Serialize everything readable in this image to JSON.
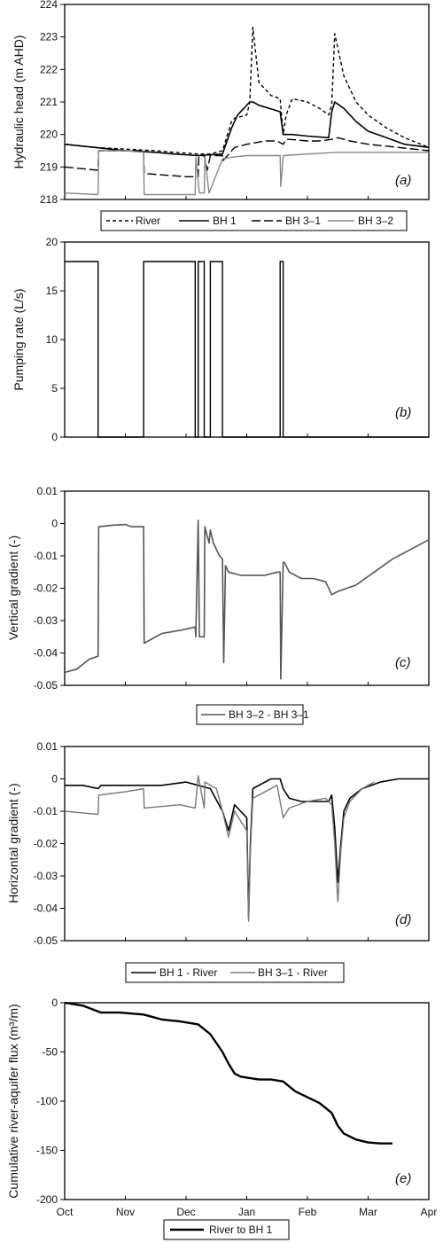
{
  "chart_data": [
    {
      "panel": "a",
      "type": "line",
      "ylabel": "Hydraulic head (m AHD)",
      "ylim": [
        218,
        224
      ],
      "yticks": [
        218,
        219,
        220,
        221,
        222,
        223,
        224
      ],
      "xlim": [
        0,
        6
      ],
      "x_unit": "months since Oct",
      "legend": [
        "River",
        "BH 1",
        "BH 3–1",
        "BH 3–2"
      ],
      "series": [
        {
          "name": "River",
          "color": "#000000",
          "dash": "4,3",
          "width": 1.4,
          "x": [
            0,
            0.5,
            1.0,
            1.5,
            1.8,
            2.2,
            2.4,
            2.6,
            2.75,
            2.8,
            3.0,
            3.05,
            3.1,
            3.2,
            3.4,
            3.55,
            3.6,
            3.65,
            3.75,
            4.0,
            4.1,
            4.2,
            4.35,
            4.4,
            4.45,
            4.6,
            4.8,
            5.0,
            5.3,
            5.6,
            6.0
          ],
          "y": [
            219.7,
            219.6,
            219.55,
            219.5,
            219.45,
            219.4,
            219.4,
            219.5,
            220.4,
            220.5,
            220.6,
            221.0,
            223.3,
            221.6,
            221.2,
            221.1,
            220.0,
            220.6,
            221.1,
            221.0,
            220.9,
            220.8,
            220.6,
            220.9,
            223.1,
            221.8,
            221.0,
            220.6,
            220.2,
            219.9,
            219.6
          ]
        },
        {
          "name": "BH 1",
          "color": "#000000",
          "dash": "",
          "width": 1.6,
          "x": [
            0,
            0.5,
            1.0,
            1.5,
            1.8,
            2.2,
            2.6,
            2.75,
            2.85,
            2.95,
            3.05,
            3.1,
            3.2,
            3.55,
            3.6,
            3.65,
            3.75,
            4.0,
            4.35,
            4.4,
            4.45,
            4.6,
            4.8,
            5.0,
            5.3,
            5.6,
            6.0
          ],
          "y": [
            219.7,
            219.6,
            219.5,
            219.45,
            219.4,
            219.35,
            219.4,
            220.2,
            220.6,
            220.8,
            221.0,
            221.0,
            220.9,
            220.7,
            220.0,
            220.0,
            220.0,
            219.95,
            219.9,
            220.7,
            221.0,
            220.8,
            220.4,
            220.1,
            219.9,
            219.7,
            219.6
          ]
        },
        {
          "name": "BH 3–1",
          "color": "#000000",
          "dash": "10,4",
          "width": 1.4,
          "x": [
            0,
            0.55,
            0.56,
            0.6,
            1.3,
            1.31,
            2.0,
            2.2,
            2.21,
            2.3,
            2.35,
            2.4,
            2.6,
            2.61,
            2.8,
            3.0,
            3.3,
            3.5,
            3.6,
            3.65,
            3.7,
            4.0,
            4.2,
            4.4,
            4.5,
            4.7,
            5.0,
            5.5,
            6.0
          ],
          "y": [
            219.0,
            218.9,
            219.5,
            219.5,
            219.5,
            218.8,
            218.7,
            218.7,
            219.35,
            219.35,
            218.9,
            219.35,
            219.35,
            219.2,
            219.6,
            219.7,
            219.8,
            219.8,
            219.7,
            219.85,
            219.85,
            219.8,
            219.8,
            219.85,
            219.9,
            219.8,
            219.7,
            219.6,
            219.5
          ]
        },
        {
          "name": "BH 3–2",
          "color": "#888888",
          "dash": "",
          "width": 1.4,
          "x": [
            0,
            0.55,
            0.56,
            1.0,
            1.3,
            1.31,
            2.0,
            2.15,
            2.16,
            2.22,
            2.3,
            2.31,
            2.38,
            2.6,
            2.75,
            3.0,
            3.5,
            3.55,
            3.56,
            3.6,
            3.61,
            4.0,
            4.5,
            5.0,
            5.5,
            6.0
          ],
          "y": [
            218.2,
            218.15,
            219.5,
            219.5,
            219.45,
            218.15,
            218.15,
            218.15,
            219.3,
            218.2,
            218.2,
            219.3,
            218.2,
            219.25,
            219.3,
            219.35,
            219.35,
            219.35,
            218.4,
            219.3,
            219.35,
            219.4,
            219.45,
            219.45,
            219.45,
            219.45
          ]
        }
      ]
    },
    {
      "panel": "b",
      "type": "line",
      "ylabel": "Pumping rate (L/s)",
      "ylim": [
        0,
        20
      ],
      "yticks": [
        0,
        5,
        10,
        15,
        20
      ],
      "xlim": [
        0,
        6
      ],
      "x_unit": "months since Oct",
      "series": [
        {
          "name": "Pumping rate",
          "color": "#000000",
          "dash": "",
          "width": 1.4,
          "x": [
            0,
            0.55,
            0.55,
            1.3,
            1.3,
            2.15,
            2.15,
            2.2,
            2.2,
            2.3,
            2.3,
            2.4,
            2.4,
            2.6,
            2.6,
            2.63,
            2.63,
            3.55,
            3.55,
            3.6,
            3.6,
            6.0
          ],
          "y": [
            18,
            18,
            0,
            0,
            18,
            18,
            0,
            0,
            18,
            18,
            0,
            0,
            18,
            18,
            0,
            0,
            0,
            0,
            18,
            18,
            0,
            0
          ]
        }
      ]
    },
    {
      "panel": "c",
      "type": "line",
      "ylabel": "Vertical gradient (-)",
      "ylim": [
        -0.05,
        0.01
      ],
      "yticks": [
        -0.05,
        -0.04,
        -0.03,
        -0.02,
        -0.01,
        0,
        0.01
      ],
      "xlim": [
        0,
        6
      ],
      "x_unit": "months since Oct",
      "legend": [
        "BH 3-2 - BH 3-1"
      ],
      "series": [
        {
          "name": "BH 3-2 - BH 3-1",
          "color": "#555555",
          "dash": "",
          "width": 1.6,
          "x": [
            0,
            0.2,
            0.4,
            0.55,
            0.56,
            0.8,
            1.0,
            1.1,
            1.3,
            1.31,
            1.6,
            1.9,
            2.15,
            2.16,
            2.2,
            2.22,
            2.3,
            2.31,
            2.35,
            2.38,
            2.4,
            2.45,
            2.55,
            2.6,
            2.62,
            2.65,
            2.7,
            2.9,
            3.1,
            3.3,
            3.5,
            3.55,
            3.56,
            3.6,
            3.62,
            3.7,
            3.9,
            4.1,
            4.3,
            4.4,
            4.5,
            4.8,
            5.1,
            5.4,
            5.7,
            6.0
          ],
          "y": [
            -0.046,
            -0.045,
            -0.042,
            -0.041,
            -0.001,
            -0.0005,
            -0.0003,
            -0.001,
            -0.001,
            -0.037,
            -0.034,
            -0.033,
            -0.032,
            -0.035,
            0.001,
            -0.035,
            -0.035,
            -0.001,
            -0.004,
            -0.006,
            -0.002,
            -0.006,
            -0.01,
            -0.011,
            -0.043,
            -0.013,
            -0.015,
            -0.016,
            -0.016,
            -0.016,
            -0.015,
            -0.015,
            -0.048,
            -0.012,
            -0.012,
            -0.015,
            -0.017,
            -0.017,
            -0.018,
            -0.022,
            -0.021,
            -0.019,
            -0.015,
            -0.011,
            -0.008,
            -0.005
          ]
        }
      ]
    },
    {
      "panel": "d",
      "type": "line",
      "ylabel": "Horizontal gradient (-)",
      "ylim": [
        -0.05,
        0.01
      ],
      "yticks": [
        -0.05,
        -0.04,
        -0.03,
        -0.02,
        -0.01,
        0,
        0.01
      ],
      "xlim": [
        0,
        6
      ],
      "x_unit": "months since Oct",
      "legend": [
        "BH 1 - River",
        "BH 3-1 - River"
      ],
      "series": [
        {
          "name": "BH 1 - River",
          "color": "#000000",
          "dash": "",
          "width": 1.6,
          "x": [
            0,
            0.3,
            0.55,
            0.6,
            1.0,
            1.3,
            1.6,
            2.0,
            2.2,
            2.4,
            2.6,
            2.7,
            2.8,
            2.9,
            3.0,
            3.03,
            3.06,
            3.1,
            3.2,
            3.4,
            3.55,
            3.6,
            3.7,
            3.9,
            4.2,
            4.35,
            4.4,
            4.45,
            4.5,
            4.55,
            4.6,
            4.7,
            4.9,
            5.2,
            5.5,
            6.0
          ],
          "y": [
            -0.002,
            -0.002,
            -0.003,
            -0.002,
            -0.002,
            -0.002,
            -0.002,
            -0.001,
            -0.002,
            -0.003,
            -0.01,
            -0.016,
            -0.008,
            -0.01,
            -0.012,
            -0.043,
            -0.02,
            -0.003,
            -0.002,
            0.0,
            0.0,
            -0.003,
            -0.006,
            -0.007,
            -0.007,
            -0.007,
            -0.005,
            -0.015,
            -0.032,
            -0.02,
            -0.01,
            -0.006,
            -0.003,
            -0.001,
            0.0,
            0.0
          ]
        },
        {
          "name": "BH 3-1 - River",
          "color": "#777777",
          "dash": "",
          "width": 1.4,
          "x": [
            0,
            0.55,
            0.56,
            1.0,
            1.3,
            1.31,
            1.9,
            2.15,
            2.2,
            2.3,
            2.31,
            2.5,
            2.6,
            2.7,
            2.8,
            2.9,
            3.0,
            3.03,
            3.06,
            3.1,
            3.2,
            3.5,
            3.55,
            3.6,
            3.7,
            4.0,
            4.3,
            4.4,
            4.45,
            4.5,
            4.55,
            4.6,
            4.7,
            4.9,
            5.1
          ],
          "y": [
            -0.01,
            -0.011,
            -0.005,
            -0.004,
            -0.003,
            -0.009,
            -0.008,
            -0.009,
            0.001,
            -0.009,
            -0.001,
            -0.003,
            -0.01,
            -0.018,
            -0.01,
            -0.013,
            -0.016,
            -0.044,
            -0.022,
            -0.006,
            -0.005,
            -0.002,
            -0.007,
            -0.012,
            -0.009,
            -0.007,
            -0.006,
            -0.008,
            -0.02,
            -0.038,
            -0.022,
            -0.012,
            -0.007,
            -0.003,
            -0.001
          ]
        }
      ]
    },
    {
      "panel": "e",
      "type": "line",
      "ylabel": "Cumulative river-aquifer flux (m³/m)",
      "ylim": [
        -200,
        0
      ],
      "yticks": [
        -200,
        -150,
        -100,
        -50,
        0
      ],
      "xlim": [
        0,
        6
      ],
      "x_unit": "months since Oct",
      "xticks": [
        "Oct",
        "Nov",
        "Dec",
        "Jan",
        "Feb",
        "Mar",
        "Apr"
      ],
      "legend": [
        "River to BH 1"
      ],
      "series": [
        {
          "name": "River to BH 1",
          "color": "#000000",
          "dash": "",
          "width": 2.4,
          "x": [
            0,
            0.3,
            0.6,
            0.9,
            1.3,
            1.6,
            1.9,
            2.2,
            2.4,
            2.6,
            2.7,
            2.8,
            2.9,
            3.0,
            3.2,
            3.4,
            3.6,
            3.8,
            4.0,
            4.2,
            4.4,
            4.5,
            4.6,
            4.8,
            5.0,
            5.2,
            5.4
          ],
          "y": [
            0,
            -3,
            -10,
            -10,
            -12,
            -17,
            -19,
            -22,
            -32,
            -50,
            -62,
            -72,
            -75,
            -76,
            -78,
            -78,
            -80,
            -90,
            -96,
            -102,
            -112,
            -125,
            -133,
            -139,
            -142,
            -143,
            -143
          ]
        }
      ]
    }
  ],
  "labels": {
    "panel_a": "(a)",
    "panel_b": "(b)",
    "panel_c": "(c)",
    "panel_d": "(d)",
    "panel_e": "(e)",
    "legend_a_river": "River",
    "legend_a_bh1": "BH 1",
    "legend_a_bh31": "BH 3–1",
    "legend_a_bh32": "BH 3–2",
    "legend_c": "BH 3–2 - BH 3–1",
    "legend_d_bh1": "BH 1 - River",
    "legend_d_bh31": "BH 3–1 - River",
    "legend_e": "River to BH 1"
  },
  "colors": {
    "river": "#000000",
    "bh1": "#000000",
    "bh3_1": "#000000",
    "bh3_2": "#888888",
    "vertical": "#555555",
    "bh3_1_river": "#777777"
  }
}
